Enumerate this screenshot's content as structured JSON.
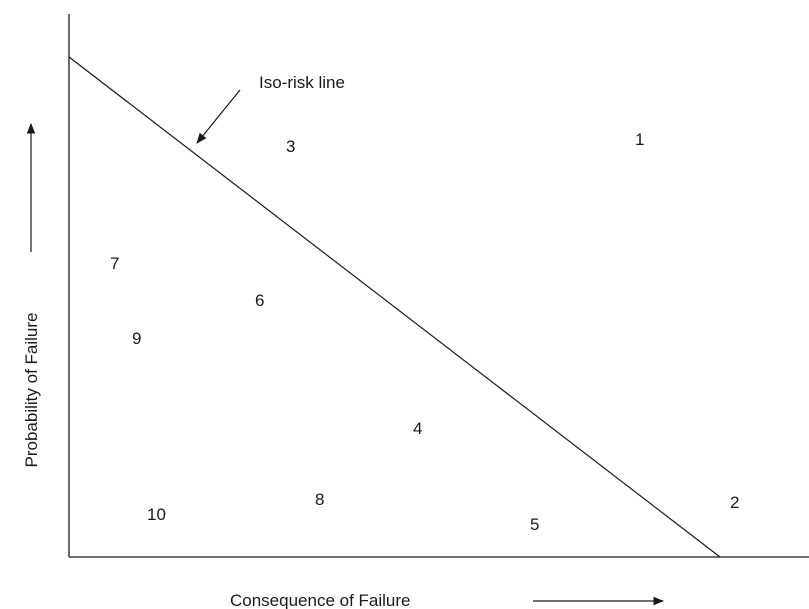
{
  "xlabel": "Consequence of Failure",
  "ylabel": "Probability of Failure",
  "annotation": "Iso-risk line",
  "points": [
    "1",
    "2",
    "3",
    "4",
    "5",
    "6",
    "7",
    "8",
    "9",
    "10"
  ]
}
